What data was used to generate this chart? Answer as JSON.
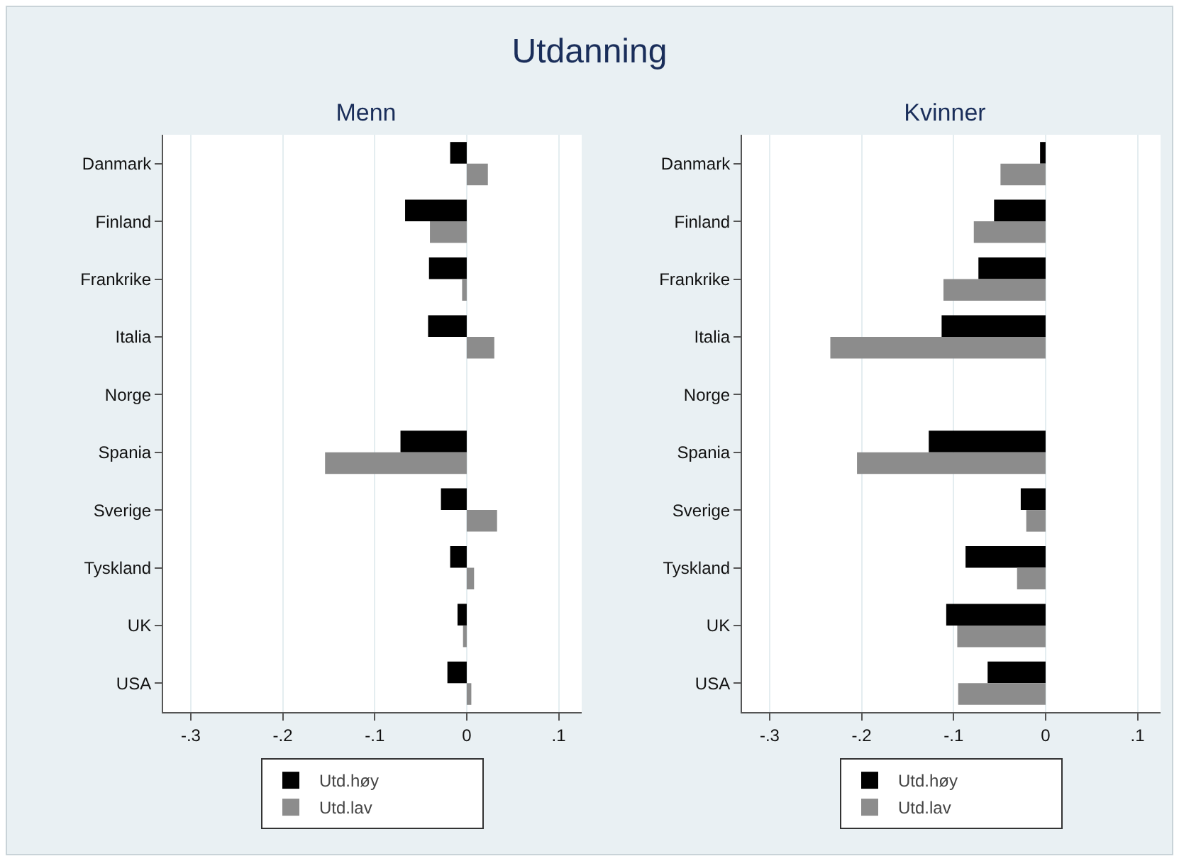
{
  "chart_data": [
    {
      "type": "bar",
      "orientation": "horizontal",
      "title": "Menn",
      "annotations": [
        "Utdanning"
      ],
      "categories": [
        "Danmark",
        "Finland",
        "Frankrike",
        "Italia",
        "Norge",
        "Spania",
        "Sverige",
        "Tyskland",
        "UK",
        "USA"
      ],
      "series": [
        {
          "name": "Utd.høy",
          "color": "#000000",
          "values": [
            -0.018,
            -0.067,
            -0.041,
            -0.042,
            null,
            -0.072,
            -0.028,
            -0.018,
            -0.01,
            -0.021
          ]
        },
        {
          "name": "Utd.lav",
          "color": "#8c8c8c",
          "values": [
            0.023,
            -0.04,
            -0.005,
            0.03,
            null,
            -0.154,
            0.033,
            0.008,
            -0.004,
            0.005
          ]
        }
      ],
      "xlim": [
        -0.33,
        0.125
      ],
      "xticks": [
        {
          "value": -0.3,
          "label": "-.3"
        },
        {
          "value": -0.2,
          "label": "-.2"
        },
        {
          "value": -0.1,
          "label": "-.1"
        },
        0,
        {
          "value": 0.1,
          "label": ".1"
        }
      ],
      "grid": "x",
      "legend": "bottom"
    },
    {
      "type": "bar",
      "orientation": "horizontal",
      "title": "Kvinner",
      "categories": [
        "Danmark",
        "Finland",
        "Frankrike",
        "Italia",
        "Norge",
        "Spania",
        "Sverige",
        "Tyskland",
        "UK",
        "USA"
      ],
      "series": [
        {
          "name": "Utd.høy",
          "color": "#000000",
          "values": [
            -0.006,
            -0.056,
            -0.073,
            -0.113,
            null,
            -0.127,
            -0.027,
            -0.087,
            -0.108,
            -0.063
          ]
        },
        {
          "name": "Utd.lav",
          "color": "#8c8c8c",
          "values": [
            -0.049,
            -0.078,
            -0.111,
            -0.234,
            null,
            -0.205,
            -0.021,
            -0.031,
            -0.096,
            -0.095
          ]
        }
      ],
      "xlim": [
        -0.33,
        0.125
      ],
      "xticks": [
        {
          "value": -0.3,
          "label": "-.3"
        },
        {
          "value": -0.2,
          "label": "-.2"
        },
        {
          "value": -0.1,
          "label": "-.1"
        },
        0,
        {
          "value": 0.1,
          "label": ".1"
        }
      ],
      "grid": "x",
      "legend": "bottom"
    }
  ]
}
